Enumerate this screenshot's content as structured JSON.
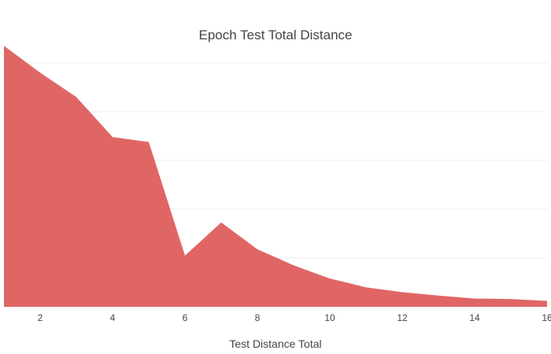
{
  "chart_data": {
    "type": "area",
    "title": "Epoch Test Total Distance",
    "xlabel": "Test Distance Total",
    "ylabel": "",
    "x": [
      1,
      2,
      3,
      4,
      5,
      6,
      7,
      8,
      9,
      10,
      11,
      12,
      13,
      14,
      15,
      16
    ],
    "series": [
      {
        "values": [
          5.35,
          4.8,
          4.3,
          3.48,
          3.38,
          1.05,
          1.73,
          1.18,
          0.85,
          0.58,
          0.4,
          0.3,
          0.23,
          0.17,
          0.16,
          0.12
        ]
      }
    ],
    "xlim": [
      1,
      16
    ],
    "ylim": [
      0,
      5
    ],
    "x_ticks": [
      2,
      4,
      6,
      8,
      10,
      12,
      14,
      16
    ],
    "y_gridlines": [
      1,
      2,
      3,
      4,
      5
    ],
    "y_tick_labels_visible": false,
    "grid": true,
    "legend": "none",
    "colors": {
      "fill": "#e06666",
      "background": "#ffffff",
      "grid": "#eeeeee",
      "text": "#444444"
    }
  }
}
